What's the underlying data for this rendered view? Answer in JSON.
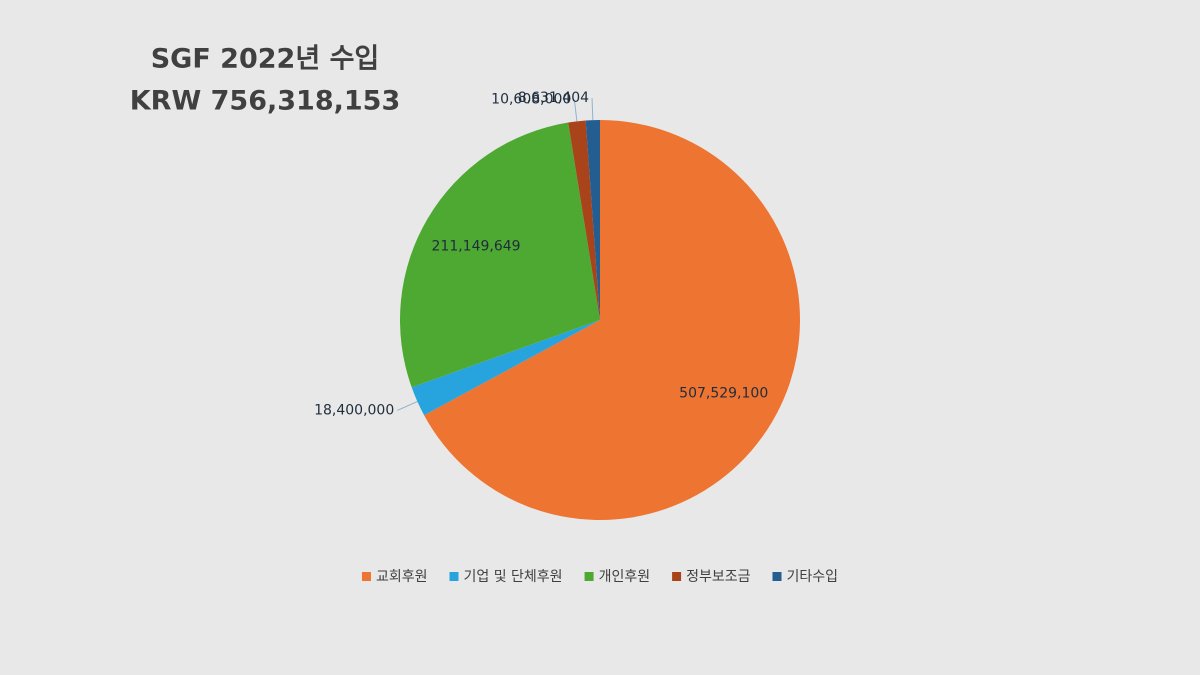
{
  "chart_data": {
    "type": "pie",
    "title": "SGF 2022년 수입",
    "subtitle": "KRW 756,318,153",
    "categories": [
      "교회후원",
      "기업 및 단체후원",
      "개인후원",
      "정부보조금",
      "기타수입"
    ],
    "values": [
      507529100,
      18400000,
      211149649,
      10608000,
      8631404
    ],
    "value_labels": [
      "507,529,100",
      "18,400,000",
      "211,149,649",
      "10,608,000",
      "8,631,404"
    ],
    "colors": [
      "#ee7432",
      "#27a3dd",
      "#4ea933",
      "#a8431a",
      "#245d8f"
    ],
    "legend": "bottom"
  }
}
